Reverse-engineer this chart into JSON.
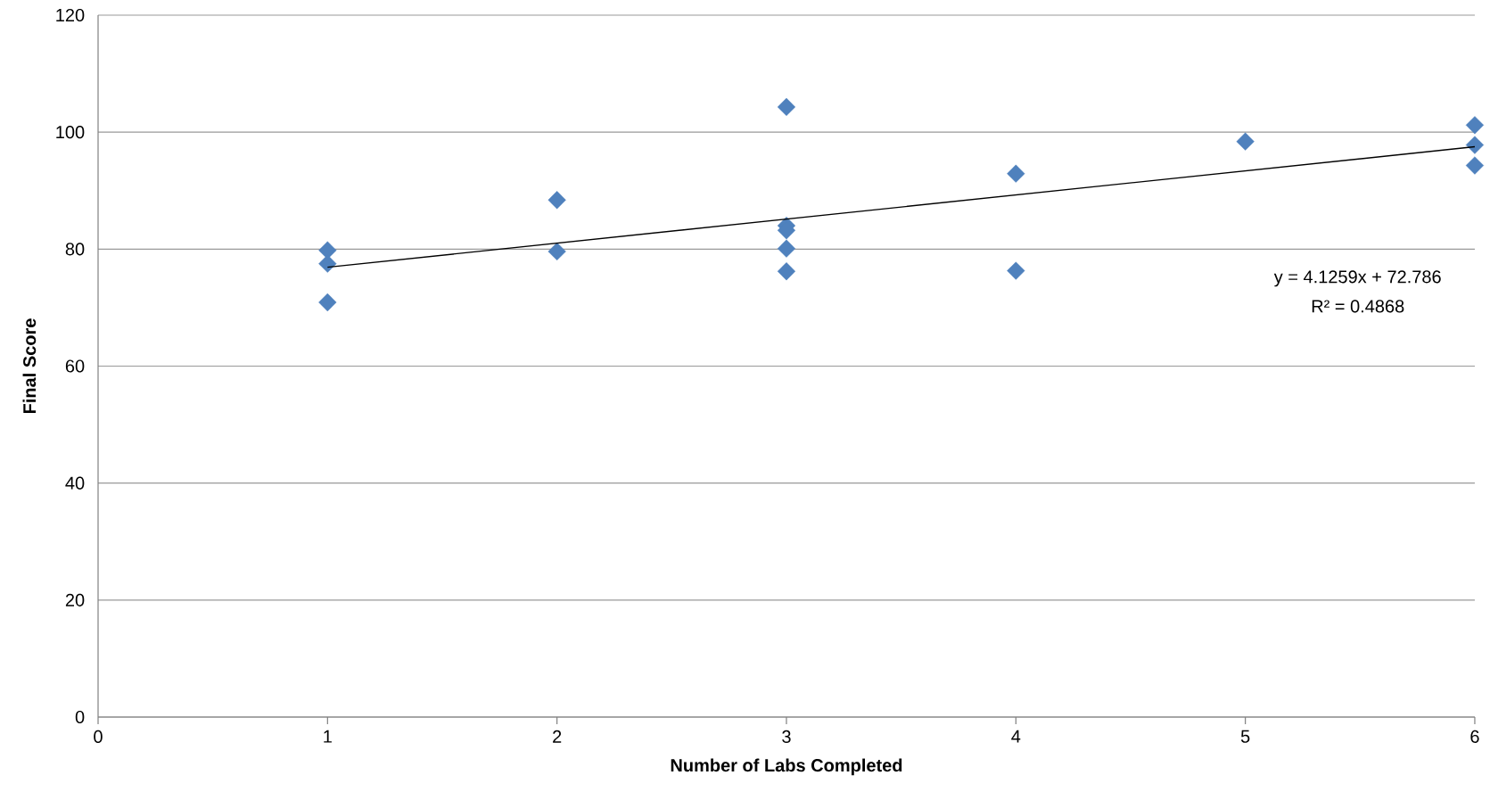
{
  "chart_data": {
    "type": "scatter",
    "xlabel": "Number of Labs Completed",
    "ylabel": "Final Score",
    "xlim": [
      0,
      6
    ],
    "ylim": [
      0,
      120
    ],
    "xticks": [
      0,
      1,
      2,
      3,
      4,
      5,
      6
    ],
    "yticks": [
      0,
      20,
      40,
      60,
      80,
      100,
      120
    ],
    "grid": "y",
    "annotations": [
      "y = 4.1259x + 72.786",
      "R² = 0.4868"
    ],
    "series": [
      {
        "marker": "diamond",
        "color": "#4f81bd",
        "x": [
          1,
          1,
          1,
          2,
          2,
          3,
          3,
          3,
          3,
          3,
          4,
          4,
          5,
          6,
          6,
          6
        ],
        "values": [
          79.8,
          77.5,
          70.9,
          88.4,
          79.6,
          104.3,
          84.0,
          83.2,
          80.1,
          76.2,
          92.9,
          76.3,
          98.4,
          101.2,
          97.8,
          94.3
        ]
      },
      {
        "type": "line",
        "color": "#000000",
        "x": [
          1,
          6
        ],
        "values": [
          76.9,
          97.5
        ]
      }
    ]
  }
}
